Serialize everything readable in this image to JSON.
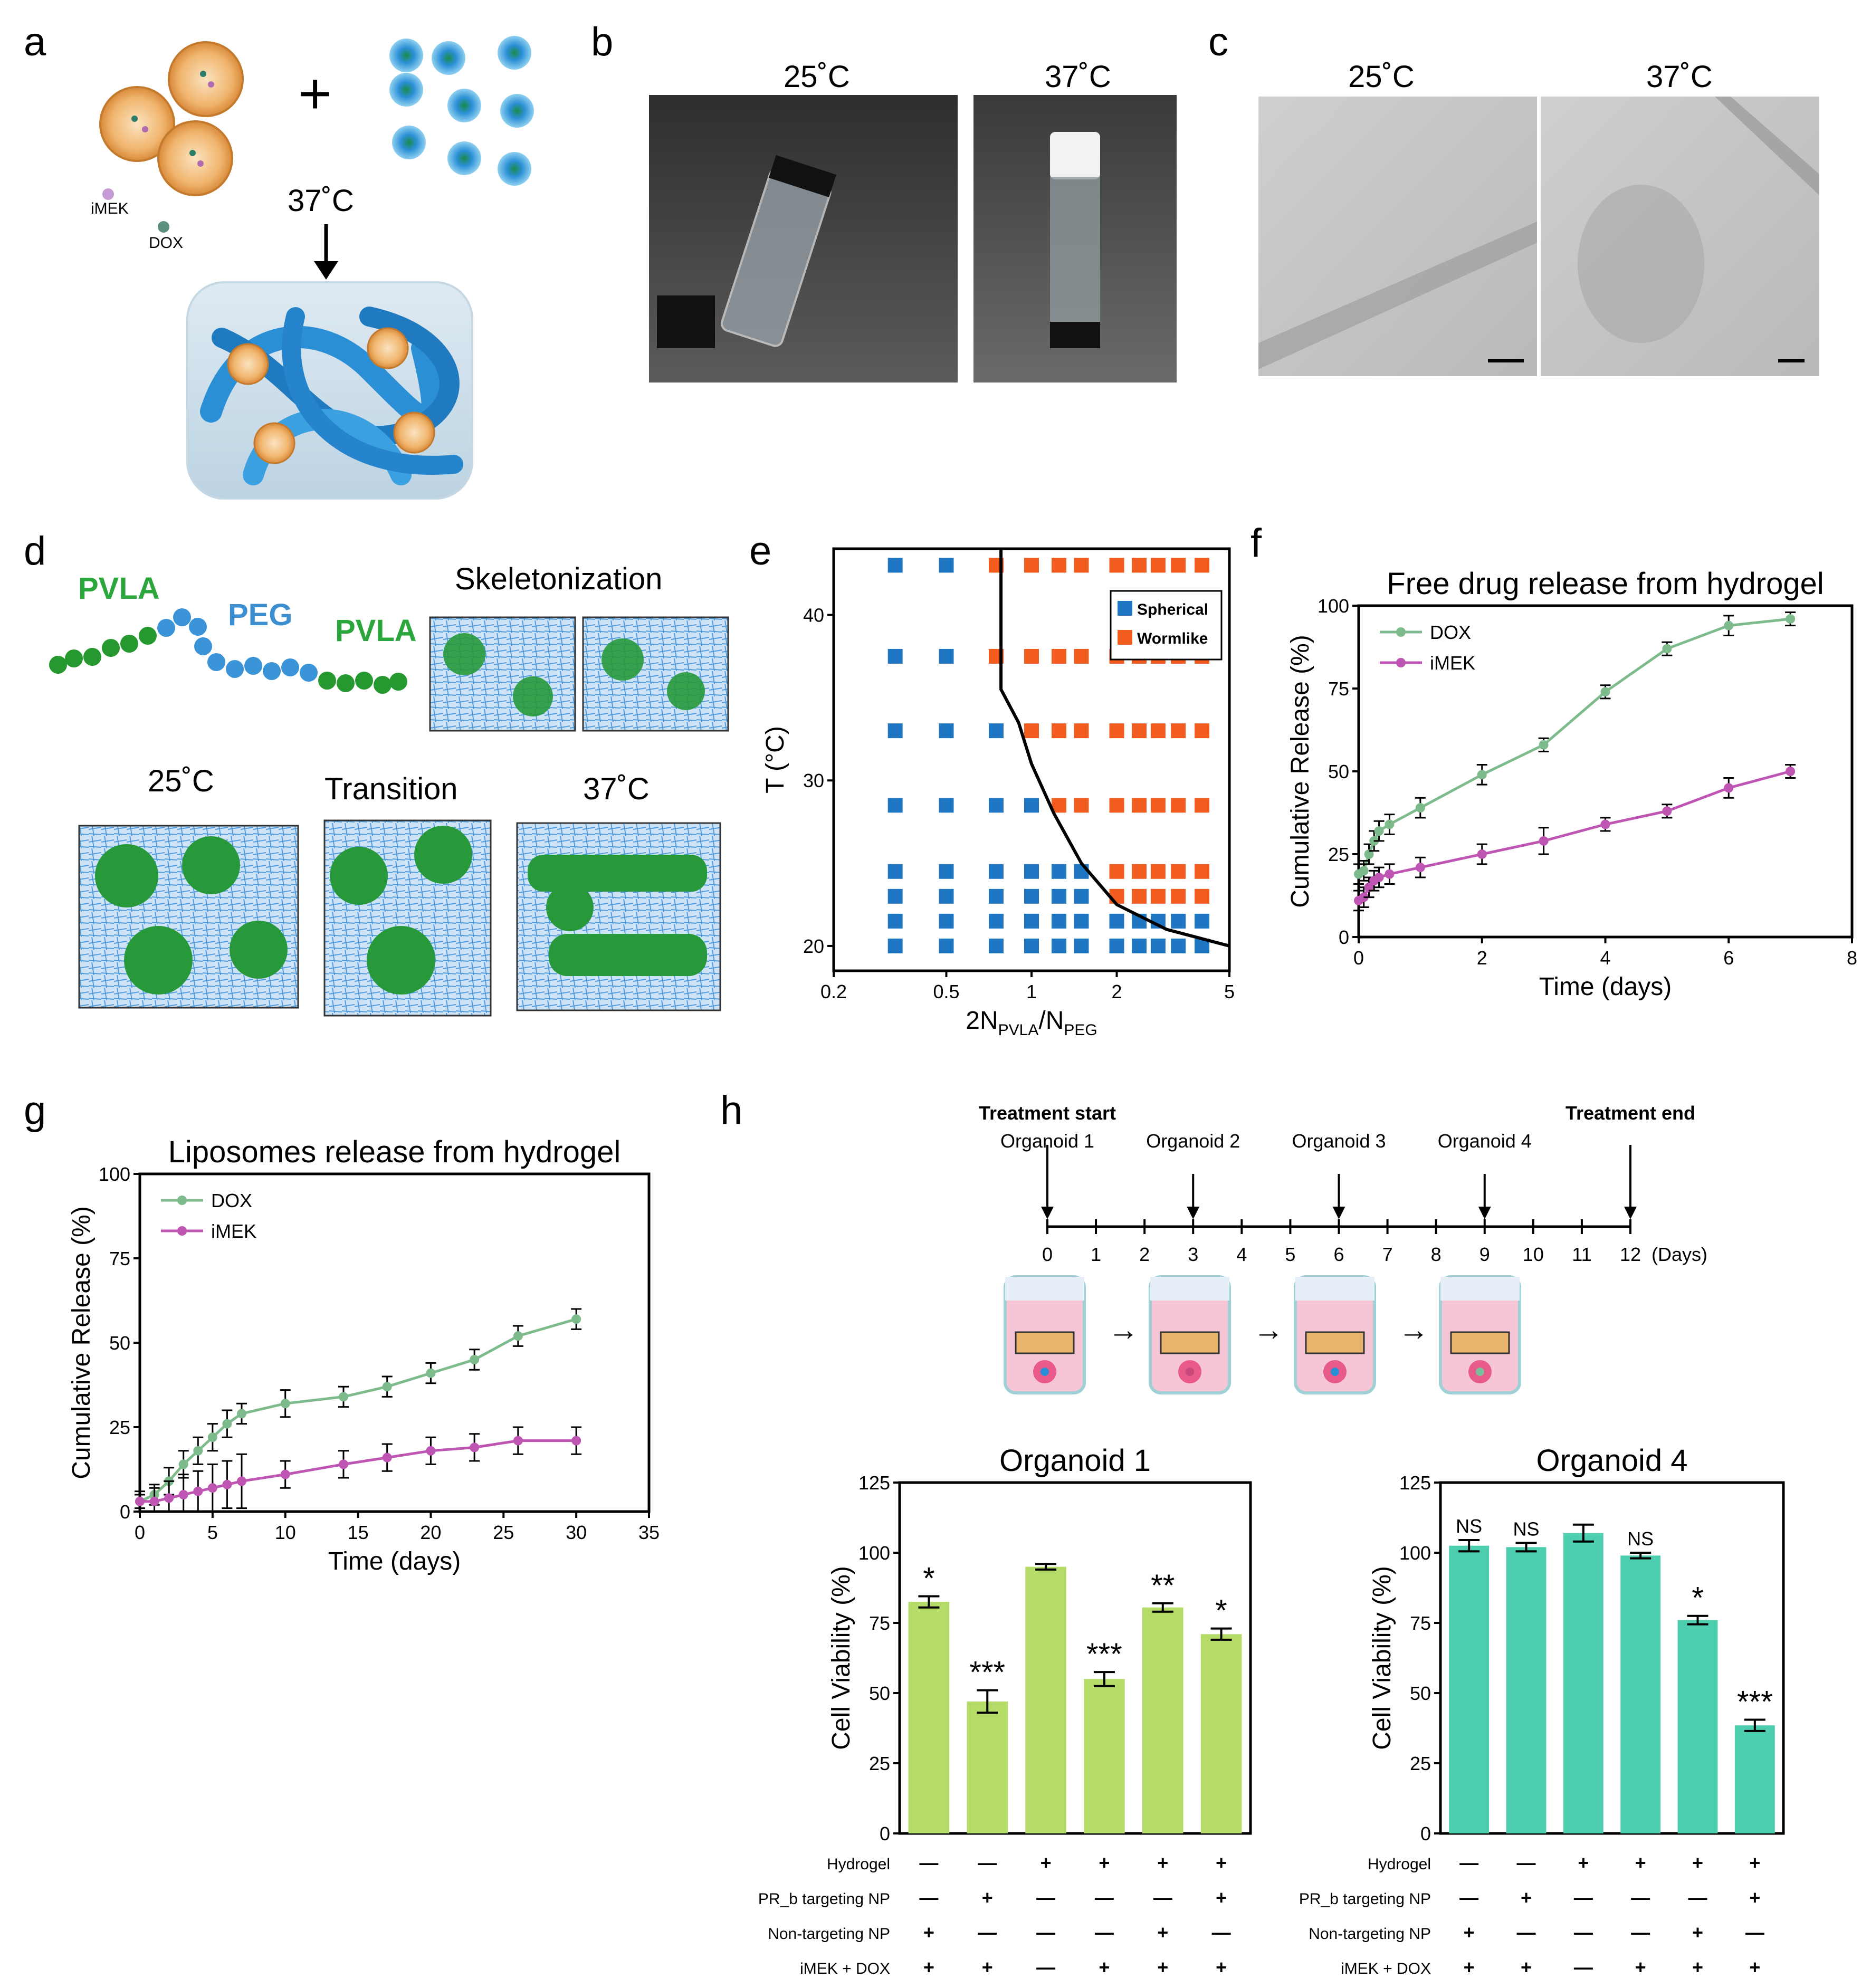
{
  "panels": {
    "a": {
      "label": "a",
      "iMEK": "iMEK",
      "DOX": "DOX",
      "temp": "37˚C",
      "plus": "+"
    },
    "b": {
      "label": "b",
      "t1": "25˚C",
      "t2": "37˚C"
    },
    "c": {
      "label": "c",
      "t1": "25˚C",
      "t2": "37˚C"
    },
    "d": {
      "label": "d",
      "pvla1": "PVLA",
      "peg": "PEG",
      "pvla2": "PVLA",
      "skeleton": "Skeletonization",
      "t1": "25˚C",
      "transition": "Transition",
      "t2": "37˚C"
    },
    "e": {
      "label": "e"
    },
    "f": {
      "label": "f"
    },
    "g": {
      "label": "g"
    },
    "h": {
      "label": "h",
      "treatment_start": "Treatment start",
      "treatment_end": "Treatment end",
      "organoids": [
        "Organoid 1",
        "Organoid 2",
        "Organoid 3",
        "Organoid 4"
      ],
      "days_label": "(Days)",
      "arrow": "→"
    }
  },
  "colors": {
    "green_line": "#7dba8c",
    "magenta_line": "#bf55b3",
    "blue": "#1f77c4",
    "orange": "#f25c1f",
    "bar_green": "#b5dc69",
    "bar_teal": "#4dcfaf",
    "gel_blue": "#2b8fd6",
    "lipo": "#f0b56e"
  },
  "chart_data": [
    {
      "id": "e",
      "type": "scatter",
      "title": "",
      "xlabel": "2N_PVLA/N_PEG",
      "ylabel": "T (°C)",
      "xlabel_main": "2N",
      "xlabel_sub1": "PVLA",
      "xlabel_mid": "/N",
      "xlabel_sub2": "PEG",
      "xscale": "log",
      "xlim": [
        0.2,
        5
      ],
      "ylim": [
        18.5,
        44
      ],
      "xticks": [
        {
          "v": 0.2,
          "l": "0.2"
        },
        {
          "v": 0.5,
          "l": "0.5"
        },
        {
          "v": 1,
          "l": "1"
        },
        {
          "v": 2,
          "l": "2"
        },
        {
          "v": 5,
          "l": "5"
        }
      ],
      "yticks": [
        {
          "v": 20,
          "l": "20"
        },
        {
          "v": 30,
          "l": "30"
        },
        {
          "v": 40,
          "l": "40"
        }
      ],
      "legend": [
        {
          "name": "Spherical",
          "color": "#1f77c4"
        },
        {
          "name": "Wormlike",
          "color": "#f25c1f"
        }
      ],
      "x_values": [
        0.33,
        0.5,
        0.75,
        1.0,
        1.25,
        1.5,
        2.0,
        2.4,
        2.8,
        3.3,
        4.0
      ],
      "temperatures": [
        20,
        21.5,
        23,
        24.5,
        28.5,
        33,
        37.5,
        43
      ],
      "phase": {
        "20": [
          "S",
          "S",
          "S",
          "S",
          "S",
          "S",
          "S",
          "S",
          "S",
          "S",
          "S"
        ],
        "21.5": [
          "S",
          "S",
          "S",
          "S",
          "S",
          "S",
          "S",
          "S",
          "S",
          "S",
          "S"
        ],
        "23": [
          "S",
          "S",
          "S",
          "S",
          "S",
          "S",
          "W",
          "W",
          "W",
          "W",
          "W"
        ],
        "24.5": [
          "S",
          "S",
          "S",
          "S",
          "S",
          "S",
          "W",
          "W",
          "W",
          "W",
          "W"
        ],
        "28.5": [
          "S",
          "S",
          "S",
          "S",
          "W",
          "W",
          "W",
          "W",
          "W",
          "W",
          "W"
        ],
        "33": [
          "S",
          "S",
          "S",
          "W",
          "W",
          "W",
          "W",
          "W",
          "W",
          "W",
          "W"
        ],
        "37.5": [
          "S",
          "S",
          "W",
          "W",
          "W",
          "W",
          "W",
          "W",
          "W",
          "W",
          "W"
        ],
        "43": [
          "S",
          "S",
          "W",
          "W",
          "W",
          "W",
          "W",
          "W",
          "W",
          "W",
          "W"
        ]
      },
      "boundary": [
        [
          0.78,
          44
        ],
        [
          0.78,
          35.5
        ],
        [
          0.9,
          33.5
        ],
        [
          1.0,
          31
        ],
        [
          1.2,
          28
        ],
        [
          1.5,
          25
        ],
        [
          2.0,
          22.5
        ],
        [
          3.0,
          21
        ],
        [
          5.0,
          20
        ]
      ]
    },
    {
      "id": "f",
      "type": "line",
      "title": "Free drug release from hydrogel",
      "xlabel": "Time (days)",
      "ylabel": "Cumulative Release (%)",
      "xlim": [
        0,
        8
      ],
      "ylim": [
        0,
        100
      ],
      "xticks": [
        0,
        2,
        4,
        6,
        8
      ],
      "yticks": [
        0,
        25,
        50,
        75,
        100
      ],
      "series": [
        {
          "name": "DOX",
          "color": "#7dba8c",
          "x": [
            0,
            0.083,
            0.167,
            0.25,
            0.33,
            0.5,
            1,
            2,
            3,
            4,
            5,
            6,
            7
          ],
          "y": [
            19,
            20,
            25,
            29,
            32,
            34,
            39,
            49,
            58,
            74,
            87,
            94,
            96
          ],
          "err": [
            3,
            3,
            3,
            3,
            3,
            3,
            3,
            3,
            2,
            2,
            2,
            3,
            2
          ]
        },
        {
          "name": "iMEK",
          "color": "#bf55b3",
          "x": [
            0,
            0.083,
            0.167,
            0.25,
            0.33,
            0.5,
            1,
            2,
            3,
            4,
            5,
            6,
            7
          ],
          "y": [
            11,
            12,
            15,
            17,
            18,
            19,
            21,
            25,
            29,
            34,
            38,
            45,
            50
          ],
          "err": [
            3,
            3,
            3,
            3,
            3,
            3,
            3,
            3,
            4,
            2,
            2,
            3,
            2
          ]
        }
      ]
    },
    {
      "id": "g",
      "type": "line",
      "title": "Liposomes release from hydrogel",
      "xlabel": "Time (days)",
      "ylabel": "Cumulative Release (%)",
      "xlim": [
        0,
        35
      ],
      "ylim": [
        0,
        100
      ],
      "xticks": [
        0,
        5,
        10,
        15,
        20,
        25,
        30,
        35
      ],
      "yticks": [
        0,
        25,
        50,
        75,
        100
      ],
      "series": [
        {
          "name": "DOX",
          "color": "#7dba8c",
          "x": [
            0,
            1,
            2,
            3,
            4,
            5,
            6,
            7,
            10,
            14,
            17,
            20,
            23,
            26,
            30
          ],
          "y": [
            3,
            5,
            9,
            14,
            18,
            22,
            26,
            29,
            32,
            34,
            37,
            41,
            45,
            52,
            57
          ],
          "err": [
            2,
            3,
            4,
            4,
            4,
            4,
            4,
            3,
            4,
            3,
            3,
            3,
            3,
            3,
            3
          ]
        },
        {
          "name": "iMEK",
          "color": "#bf55b3",
          "x": [
            0,
            1,
            2,
            3,
            4,
            5,
            6,
            7,
            10,
            14,
            17,
            20,
            23,
            26,
            30
          ],
          "y": [
            3,
            3,
            4,
            5,
            6,
            7,
            8,
            9,
            11,
            14,
            16,
            18,
            19,
            21,
            21
          ],
          "err": [
            3,
            4,
            5,
            6,
            6,
            7,
            7,
            8,
            4,
            4,
            4,
            4,
            4,
            4,
            4
          ]
        }
      ]
    },
    {
      "id": "h-timeline",
      "type": "timeline",
      "days": [
        0,
        1,
        2,
        3,
        4,
        5,
        6,
        7,
        8,
        9,
        10,
        11,
        12
      ],
      "markers": [
        {
          "day": 0,
          "label": "Organoid 1",
          "top": "Treatment start"
        },
        {
          "day": 3,
          "label": "Organoid 2"
        },
        {
          "day": 6,
          "label": "Organoid 3"
        },
        {
          "day": 9,
          "label": "Organoid 4"
        },
        {
          "day": 12,
          "label": "",
          "top": "Treatment end"
        }
      ]
    },
    {
      "id": "h1",
      "type": "bar",
      "title": "Organoid 1",
      "ylabel": "Cell Viability (%)",
      "ylim": [
        0,
        125
      ],
      "yticks": [
        0,
        25,
        50,
        75,
        100,
        125
      ],
      "color": "#b5dc69",
      "values": [
        82.5,
        47,
        95,
        55,
        80.5,
        71
      ],
      "err": [
        2,
        4,
        1,
        2.5,
        1.5,
        2
      ],
      "sig": [
        "*",
        "***",
        "",
        "***",
        "**",
        "*"
      ]
    },
    {
      "id": "h4",
      "type": "bar",
      "title": "Organoid 4",
      "ylabel": "Cell Viability (%)",
      "ylim": [
        0,
        125
      ],
      "yticks": [
        0,
        25,
        50,
        75,
        100,
        125
      ],
      "color": "#4dcfaf",
      "values": [
        102.5,
        102,
        107,
        99,
        76,
        38.5
      ],
      "err": [
        2,
        1.5,
        3,
        1,
        1.5,
        2
      ],
      "sig": [
        "NS",
        "NS",
        "",
        "NS",
        "*",
        "***"
      ]
    }
  ],
  "conditions": {
    "rows": [
      "Hydrogel",
      "PR_b targeting NP",
      "Non-targeting NP",
      "iMEK + DOX"
    ],
    "values": [
      [
        "—",
        "—",
        "+",
        "+",
        "+",
        "+"
      ],
      [
        "—",
        "+",
        "—",
        "—",
        "—",
        "+"
      ],
      [
        "+",
        "—",
        "—",
        "—",
        "+",
        "—"
      ],
      [
        "+",
        "+",
        "—",
        "+",
        "+",
        "+"
      ]
    ]
  }
}
